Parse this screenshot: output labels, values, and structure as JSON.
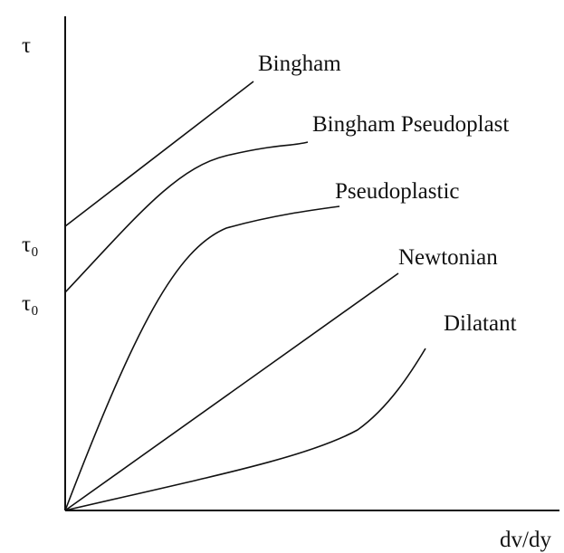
{
  "axes": {
    "y_label": "τ",
    "x_label": "dv/dy",
    "y_marks": [
      "τ₀",
      "τ₀"
    ]
  },
  "curves": [
    {
      "label": "Bingham"
    },
    {
      "label": "Bingham Pseudoplast"
    },
    {
      "label": "Pseudoplastic"
    },
    {
      "label": "Newtonian"
    },
    {
      "label": "Dilatant"
    }
  ]
}
